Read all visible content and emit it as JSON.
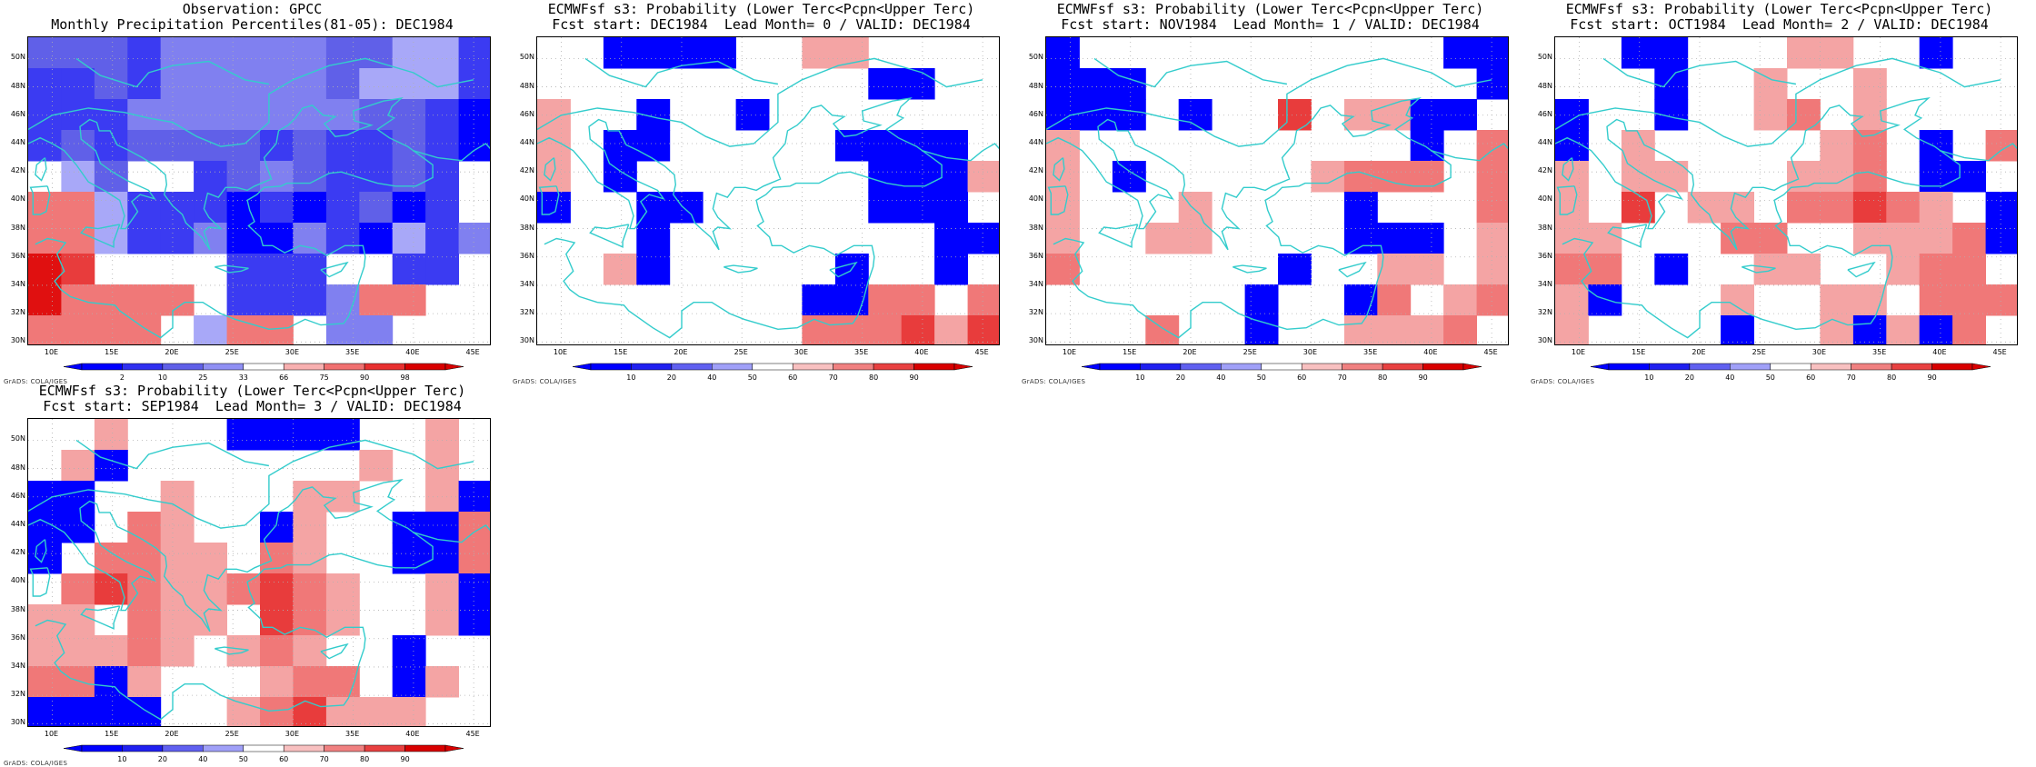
{
  "panels": [
    {
      "title_line1": "Observation: GPCC",
      "title_line2": "Monthly Precipitation Percentiles(81-05): DEC1984",
      "cb_type": "obs",
      "grid": [
        "BBBBBBBbbbbbbbbbbbbbbbbbbbbbbbbbbbbbbbbbbbbbbbbbbbbbbbbbbb",
        "Bbbbbbbbbbbbbbbbbbbbbbbbbbbbbbbbbbbbbbbbbbbbbbbbbbbbbbbbbb"
      ],
      "cb_labels": [
        "2",
        "10",
        "25",
        "33",
        "66",
        "75",
        "90",
        "98"
      ]
    },
    {
      "title_line1": "ECMWFsf s3: Probability (Lower Terc<Pcpn<Upper Terc)",
      "title_line2": "Fcst start: DEC1984  Lead Month= 0 / VALID: DEC1984",
      "cb_type": "prob",
      "cb_labels": [
        "10",
        "20",
        "40",
        "50",
        "60",
        "70",
        "80",
        "90"
      ]
    },
    {
      "title_line1": "ECMWFsf s3: Probability (Lower Terc<Pcpn<Upper Terc)",
      "title_line2": "Fcst start: NOV1984  Lead Month= 1 / VALID: DEC1984",
      "cb_type": "prob",
      "cb_labels": [
        "10",
        "20",
        "40",
        "50",
        "60",
        "70",
        "80",
        "90"
      ]
    },
    {
      "title_line1": "ECMWFsf s3: Probability (Lower Terc<Pcpn<Upper Terc)",
      "title_line2": "Fcst start: OCT1984  Lead Month= 2 / VALID: DEC1984",
      "cb_type": "prob",
      "cb_labels": [
        "10",
        "20",
        "40",
        "50",
        "60",
        "70",
        "80",
        "90"
      ]
    },
    {
      "title_line1": "ECMWFsf s3: Probability (Lower Terc<Pcpn<Upper Terc)",
      "title_line2": "Fcst start: SEP1984  Lead Month= 3 / VALID: DEC1984",
      "cb_type": "prob",
      "cb_labels": [
        "10",
        "20",
        "40",
        "50",
        "60",
        "70",
        "80",
        "90"
      ]
    }
  ],
  "lat_labels": [
    "50N",
    "48N",
    "46N",
    "44N",
    "42N",
    "40N",
    "38N",
    "36N",
    "34N",
    "32N",
    "30N"
  ],
  "lon_labels": [
    "10E",
    "15E",
    "20E",
    "25E",
    "30E",
    "35E",
    "40E",
    "45E"
  ],
  "credit": "GrADS: COLA/IGES",
  "colors": {
    "frame": "#000000",
    "coast": "#33cccc",
    "grid": "#b0b0b0"
  }
}
